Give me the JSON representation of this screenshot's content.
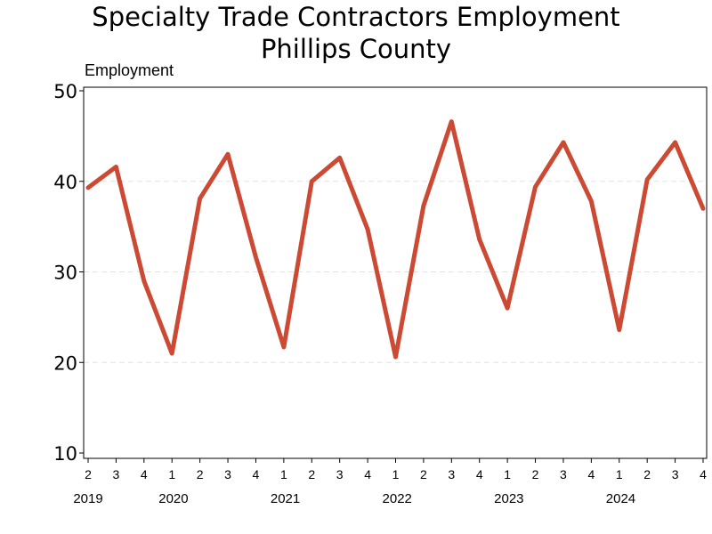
{
  "chart_data": {
    "type": "line",
    "title": "Specialty Trade Contractors Employment",
    "subtitle": "Phillips County",
    "ylabel": "Employment",
    "xlabel": "",
    "ylim": [
      10,
      50
    ],
    "yticks": [
      10,
      20,
      30,
      40,
      50
    ],
    "grid": "horizontal dashed",
    "x": [
      "2019 Q2",
      "2019 Q3",
      "2019 Q4",
      "2020 Q1",
      "2020 Q2",
      "2020 Q3",
      "2020 Q4",
      "2021 Q1",
      "2021 Q2",
      "2021 Q3",
      "2021 Q4",
      "2022 Q1",
      "2022 Q2",
      "2022 Q3",
      "2022 Q4",
      "2023 Q1",
      "2023 Q2",
      "2023 Q3",
      "2023 Q4",
      "2024 Q1",
      "2024 Q2",
      "2024 Q3",
      "2024 Q4"
    ],
    "quarter_labels": [
      "2",
      "3",
      "4",
      "1",
      "2",
      "3",
      "4",
      "1",
      "2",
      "3",
      "4",
      "1",
      "2",
      "3",
      "4",
      "1",
      "2",
      "3",
      "4",
      "1",
      "2",
      "3",
      "4"
    ],
    "year_labels": [
      {
        "label": "2019",
        "index": 0
      },
      {
        "label": "2020",
        "index": 3
      },
      {
        "label": "2021",
        "index": 7
      },
      {
        "label": "2022",
        "index": 11
      },
      {
        "label": "2023",
        "index": 15
      },
      {
        "label": "2024",
        "index": 19
      }
    ],
    "series": [
      {
        "values": [
          39.3,
          41.6,
          29.0,
          21.0,
          38.1,
          43.0,
          31.6,
          21.7,
          40.0,
          42.6,
          34.7,
          20.6,
          37.3,
          46.6,
          33.6,
          26.0,
          39.4,
          44.3,
          37.8,
          23.6,
          40.2,
          44.3,
          37.0
        ],
        "color": "#cc4a33"
      }
    ]
  }
}
